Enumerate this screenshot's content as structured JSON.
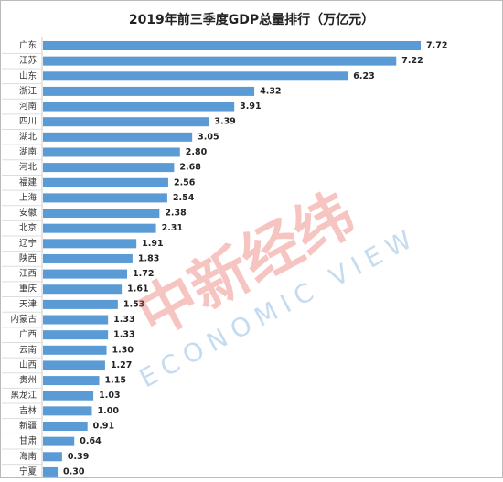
{
  "chart_data": {
    "type": "hbar",
    "title": "2019年前三季度GDP总量排行（万亿元）",
    "categories": [
      "广东",
      "江苏",
      "山东",
      "浙江",
      "河南",
      "四川",
      "湖北",
      "湖南",
      "河北",
      "福建",
      "上海",
      "安徽",
      "北京",
      "辽宁",
      "陕西",
      "江西",
      "重庆",
      "天津",
      "内蒙古",
      "广西",
      "云南",
      "山西",
      "贵州",
      "黑龙江",
      "吉林",
      "新疆",
      "甘肃",
      "海南",
      "宁夏"
    ],
    "values": [
      7.72,
      7.22,
      6.23,
      4.32,
      3.91,
      3.39,
      3.05,
      2.8,
      2.68,
      2.56,
      2.54,
      2.38,
      2.31,
      1.91,
      1.83,
      1.72,
      1.61,
      1.53,
      1.33,
      1.33,
      1.3,
      1.27,
      1.15,
      1.03,
      1,
      0.91,
      0.64,
      0.39,
      0.3
    ],
    "value_labels": [
      "7.72",
      "7.22",
      "6.23",
      "4.32",
      "3.91",
      "3.39",
      "3.05",
      "2.80",
      "2.68",
      "2.56",
      "2.54",
      "2.38",
      "2.31",
      "1.91",
      "1.83",
      "1.72",
      "1.61",
      "1.53",
      "1.33",
      "1.33",
      "1.30",
      "1.27",
      "1.15",
      "1.03",
      "1.00",
      "0.91",
      "0.64",
      "0.39",
      "0.30"
    ],
    "color": "#5b9bd5",
    "watermark": {
      "cn": "中新经纬",
      "en": "ECONOMIC VIEW"
    }
  }
}
